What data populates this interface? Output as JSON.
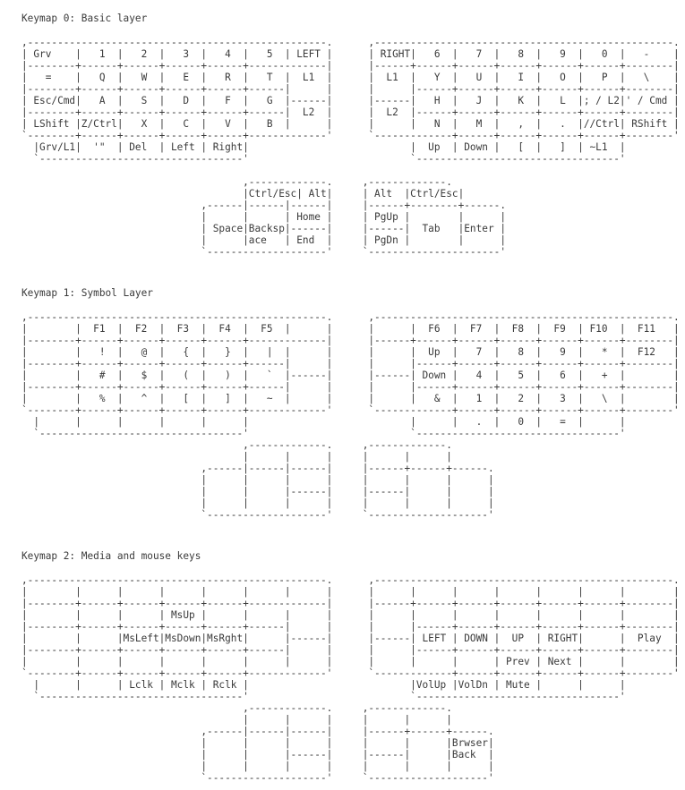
{
  "page": {
    "background_color": "#ffffff",
    "text_color": "#3a3a3a"
  },
  "keymaps": [
    {
      "title": "Keymap 0: Basic layer",
      "lines": [
        ",--------------------------------------------------.      ,--------------------------------------------------.",
        "| Grv    |   1  |   2  |   3  |   4  |   5  | LEFT |      | RIGHT|   6  |   7  |   8  |   9  |   0  |   -    |",
        "|--------+------+------+------+------+-------------|      |------+------+------+------+------+------+--------|",
        "|   =    |   Q  |   W  |   E  |   R  |   T  |  L1  |      |  L1  |   Y  |   U  |   I  |   O  |   P  |   \\    |",
        "|--------+------+------+------+------+------|      |      |      |------+------+------+------+------+--------|",
        "| Esc/Cmd|   A  |   S  |   D  |   F  |   G  |------|      |------|   H  |   J  |   K  |   L  |; / L2|' / Cmd |",
        "|--------+------+------+------+------+------|  L2  |      |  L2  |------+------+------+------+------+--------|",
        "| LShift |Z/Ctrl|   X  |   C  |   V  |   B  |      |      |      |   N  |   M  |   ,  |   .  |//Ctrl| RShift |",
        "`--------+------+------+------+------+-------------'      `-------------+------+------+------+------+--------'",
        "  |Grv/L1|  '\"  | Del  | Left | Right|                           |  Up  | Down |   [  |   ]  | ~L1  |",
        "  `----------------------------------'                           `----------------------------------'",
        "",
        "                                     ,-------------.     ,-------------.",
        "                                     |Ctrl/Esc| Alt|     | Alt  |Ctrl/Esc|",
        "                              ,------|------|------|     |------+--------+------.",
        "                              |      |      | Home |     | PgUp |        |      |",
        "                              | Space|Backsp|------|     |------|  Tab   |Enter |",
        "                              |      |ace   | End  |     | PgDn |        |      |",
        "                              `--------------------'     `----------------------'"
      ]
    },
    {
      "title": "Keymap 1: Symbol Layer",
      "lines": [
        ",--------------------------------------------------.      ,--------------------------------------------------.",
        "|        |  F1  |  F2  |  F3  |  F4  |  F5  |      |      |      |  F6  |  F7  |  F8  |  F9  | F10  |  F11   |",
        "|--------+------+------+------+------+-------------|      |------+------+------+------+------+------+--------|",
        "|        |   !  |   @  |   {  |   }  |   |  |      |      |      |  Up  |   7  |   8  |   9  |   *  |  F12   |",
        "|--------+------+------+------+------+------|      |      |      |------+------+------+------+------+--------|",
        "|        |   #  |   $  |   (  |   )  |   `  |------|      |------| Down |   4  |   5  |   6  |   +  |        |",
        "|--------+------+------+------+------+------|      |      |      |------+------+------+------+------+--------|",
        "|        |   %  |   ^  |   [  |   ]  |   ~  |      |      |      |   &  |   1  |   2  |   3  |   \\  |        |",
        "`--------+------+------+------+------+-------------'      `-------------+------+------+------+------+--------'",
        "  |      |      |      |      |      |                           |      |   .  |   0  |   =  |      |",
        "  `----------------------------------'                           `----------------------------------'",
        "                                     ,-------------.     ,-------------.",
        "                                     |      |      |     |      |      |",
        "                              ,------|------|------|     |------+------+------.",
        "                              |      |      |      |     |      |      |      |",
        "                              |      |      |------|     |------|      |      |",
        "                              |      |      |      |     |      |      |      |",
        "                              `--------------------'     `--------------------'"
      ]
    },
    {
      "title": "Keymap 2: Media and mouse keys",
      "lines": [
        ",--------------------------------------------------.      ,--------------------------------------------------.",
        "|        |      |      |      |      |      |      |      |      |      |      |      |      |      |        |",
        "|--------+------+------+------+------+-------------|      |------+------+------+------+------+------+--------|",
        "|        |      |      | MsUp |      |      |      |      |      |      |      |      |      |      |        |",
        "|--------+------+------+------+------+------|      |      |      |------+------+------+------+------+--------|",
        "|        |      |MsLeft|MsDown|MsRght|      |------|      |------| LEFT | DOWN |  UP  | RIGHT|      |  Play  |",
        "|--------+------+------+------+------+------|      |      |      |------+------+------+------+------+--------|",
        "|        |      |      |      |      |      |      |      |      |      |      | Prev | Next |      |        |",
        "`--------+------+------+------+------+-------------'      `-------------+------+------+------+------+--------'",
        "  |      |      | Lclk | Mclk | Rclk |                           |VolUp |VolDn | Mute |      |      |",
        "  `----------------------------------'                           `----------------------------------'",
        "                                     ,-------------.     ,-------------.",
        "                                     |      |      |     |      |      |",
        "                              ,------|------|------|     |------+------+------.",
        "                              |      |      |      |     |      |      |Brwser|",
        "                              |      |      |------|     |------|      |Back  |",
        "                              |      |      |      |     |      |      |      |",
        "                              `--------------------'     `--------------------'"
      ]
    }
  ]
}
